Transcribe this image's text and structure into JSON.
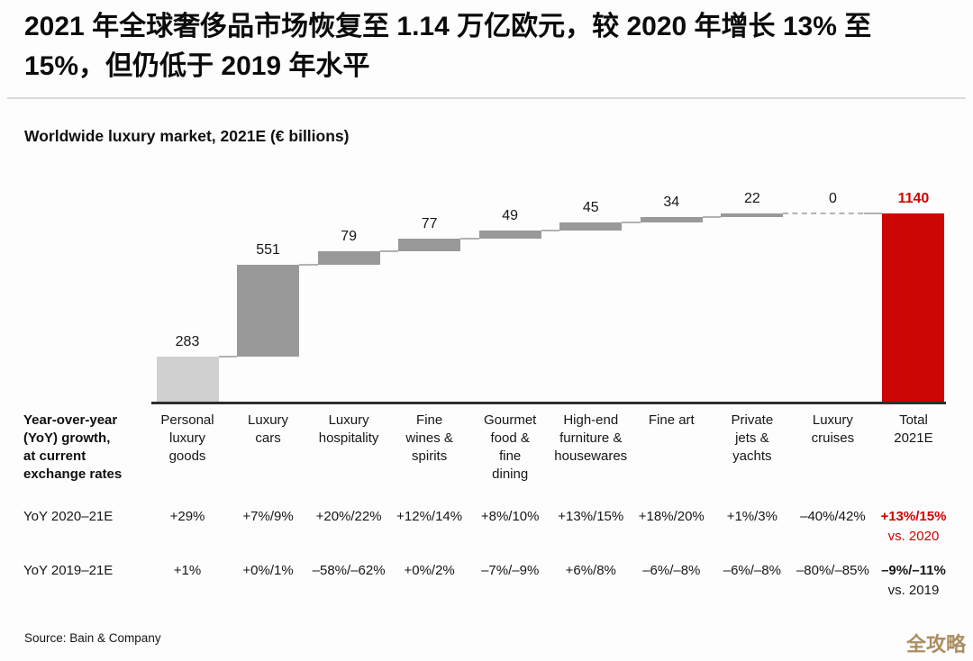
{
  "page": {
    "title_lines": [
      "2021 年全球奢侈品市场恢复至 1.14 万亿欧元，较 2020 年增长 13% 至",
      "15%，但仍低于 2019 年水平"
    ]
  },
  "chart_data": {
    "type": "waterfall",
    "title": "Worldwide luxury market, 2021E (€ billions)",
    "unit": "€ billions",
    "categories": [
      "Personal luxury goods",
      "Luxury cars",
      "Luxury hospitality",
      "Fine wines & spirits",
      "Gourmet food & fine dining",
      "High-end furniture & housewares",
      "Fine art",
      "Private jets & yachts",
      "Luxury cruises",
      "Total 2021E"
    ],
    "category_label_lines": [
      [
        "Personal",
        "luxury",
        "goods"
      ],
      [
        "Luxury",
        "cars"
      ],
      [
        "Luxury",
        "hospitality"
      ],
      [
        "Fine",
        "wines &",
        "spirits"
      ],
      [
        "Gourmet",
        "food &",
        "fine",
        "dining"
      ],
      [
        "High-end",
        "furniture &",
        "housewares"
      ],
      [
        "Fine art"
      ],
      [
        "Private",
        "jets &",
        "yachts"
      ],
      [
        "Luxury",
        "cruises"
      ],
      [
        "Total",
        "2021E"
      ]
    ],
    "values": [
      283,
      551,
      79,
      77,
      49,
      45,
      34,
      22,
      0,
      1140
    ],
    "total_index": 9,
    "total_value": 1140,
    "ylim": [
      0,
      1140
    ],
    "grid": false,
    "legend": "none",
    "colors": {
      "first_bar": "#d0d0d0",
      "middle_bars": "#999999",
      "total_bar": "#cc0505",
      "total_text": "#d40000",
      "connector": "#b2b2b2"
    }
  },
  "table": {
    "header_lines": [
      "Year-over-year",
      "(YoY) growth,",
      "at current",
      "exchange rates"
    ],
    "rows": [
      {
        "label": "YoY 2020–21E",
        "values": [
          "+29%",
          "+7%/9%",
          "+20%/22%",
          "+12%/14%",
          "+8%/10%",
          "+13%/15%",
          "+18%/20%",
          "+1%/3%",
          "–40%/42%",
          "+13%/15%"
        ],
        "total_note": "vs. 2020",
        "total_color": "#d40000",
        "note_color": "#d40000"
      },
      {
        "label": "YoY 2019–21E",
        "values": [
          "+1%",
          "+0%/1%",
          "–58%/–62%",
          "+0%/2%",
          "–7%/–9%",
          "+6%/8%",
          "–6%/–8%",
          "–6%/–8%",
          "–80%/–85%",
          "–9%/–11%"
        ],
        "total_note": "vs. 2019",
        "total_color": "#161616",
        "note_color": "#161616"
      }
    ]
  },
  "footer": {
    "source": "Source: Bain & Company",
    "watermark": "全攻略"
  }
}
